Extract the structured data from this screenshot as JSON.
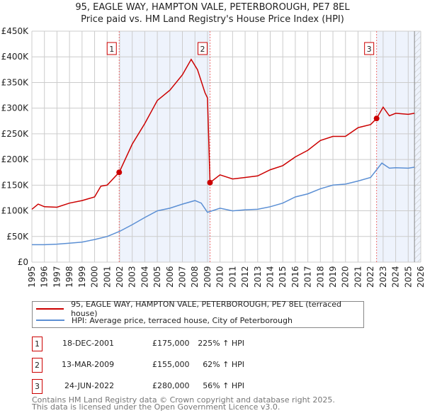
{
  "title": "95, EAGLE WAY, HAMPTON VALE, PETERBOROUGH, PE7 8EL",
  "subtitle": "Price paid vs. HM Land Registry's House Price Index (HPI)",
  "chart_data": {
    "type": "line",
    "xlim": [
      1995,
      2026
    ],
    "ylim": [
      0,
      450000
    ],
    "xticks": [
      "1995",
      "1996",
      "1997",
      "1998",
      "1999",
      "2000",
      "2001",
      "2002",
      "2003",
      "2004",
      "2005",
      "2006",
      "2007",
      "2008",
      "2009",
      "2010",
      "2011",
      "2012",
      "2013",
      "2014",
      "2015",
      "2016",
      "2017",
      "2018",
      "2019",
      "2020",
      "2021",
      "2022",
      "2023",
      "2024",
      "2025",
      "2026"
    ],
    "yticks": [
      {
        "v": 0,
        "label": "£0"
      },
      {
        "v": 50000,
        "label": "£50K"
      },
      {
        "v": 100000,
        "label": "£100K"
      },
      {
        "v": 150000,
        "label": "£150K"
      },
      {
        "v": 200000,
        "label": "£200K"
      },
      {
        "v": 250000,
        "label": "£250K"
      },
      {
        "v": 300000,
        "label": "£300K"
      },
      {
        "v": 350000,
        "label": "£350K"
      },
      {
        "v": 400000,
        "label": "£400K"
      },
      {
        "v": 450000,
        "label": "£450K"
      }
    ],
    "colors": {
      "price": "#cc0000",
      "hpi": "#5b8fd4",
      "shade": "#eef3fc"
    },
    "forecast_start": 2025.5,
    "series": [
      {
        "name": "95, EAGLE WAY, HAMPTON VALE, PETERBOROUGH, PE7 8EL (terraced house)",
        "x": [
          1995,
          1995.5,
          1996,
          1997,
          1998,
          1999,
          2000,
          2000.5,
          2001,
          2001.96,
          2003,
          2004,
          2005,
          2006,
          2007,
          2007.7,
          2008.2,
          2008.8,
          2009.0,
          2009.2,
          2010,
          2011,
          2012,
          2013,
          2014,
          2015,
          2016,
          2017,
          2018,
          2019,
          2020,
          2021,
          2022,
          2022.48,
          2023,
          2023.5,
          2024,
          2025,
          2025.5
        ],
        "y": [
          103000,
          113000,
          108000,
          107000,
          115000,
          120000,
          127000,
          148000,
          150000,
          175000,
          230000,
          270000,
          315000,
          335000,
          365000,
          395000,
          375000,
          330000,
          320000,
          155000,
          170000,
          162000,
          165000,
          168000,
          180000,
          188000,
          205000,
          218000,
          237000,
          245000,
          245000,
          262000,
          268000,
          280000,
          302000,
          285000,
          290000,
          288000,
          290000
        ]
      },
      {
        "name": "HPI: Average price, terraced house, City of Peterborough",
        "x": [
          1995,
          1996,
          1997,
          1998,
          1999,
          2000,
          2001,
          2002,
          2003,
          2004,
          2005,
          2006,
          2007,
          2008,
          2008.5,
          2009,
          2010,
          2011,
          2012,
          2013,
          2014,
          2015,
          2016,
          2017,
          2018,
          2019,
          2020,
          2021,
          2022,
          2022.9,
          2023.5,
          2024,
          2025,
          2025.5
        ],
        "y": [
          34000,
          34000,
          35000,
          37000,
          39000,
          44000,
          50000,
          60000,
          73000,
          87000,
          100000,
          105000,
          113000,
          120000,
          115000,
          97000,
          105000,
          100000,
          102000,
          103000,
          108000,
          115000,
          127000,
          133000,
          143000,
          150000,
          152000,
          158000,
          165000,
          193000,
          183000,
          184000,
          183000,
          185000
        ]
      }
    ],
    "sales": [
      {
        "n": "1",
        "x": 2001.96,
        "y": 175000
      },
      {
        "n": "2",
        "x": 2009.2,
        "y": 155000
      },
      {
        "n": "3",
        "x": 2022.48,
        "y": 280000
      }
    ]
  },
  "legend": {
    "price": "95, EAGLE WAY, HAMPTON VALE, PETERBOROUGH, PE7 8EL (terraced house)",
    "hpi": "HPI: Average price, terraced house, City of Peterborough"
  },
  "transactions": [
    {
      "n": "1",
      "date": "18-DEC-2001",
      "price": "£175,000",
      "hpi": "225% ↑ HPI"
    },
    {
      "n": "2",
      "date": "13-MAR-2009",
      "price": "£155,000",
      "hpi": "62% ↑ HPI"
    },
    {
      "n": "3",
      "date": "24-JUN-2022",
      "price": "£280,000",
      "hpi": "56% ↑ HPI"
    }
  ],
  "footer": {
    "line1": "Contains HM Land Registry data © Crown copyright and database right 2025.",
    "line2": "This data is licensed under the Open Government Licence v3.0."
  }
}
